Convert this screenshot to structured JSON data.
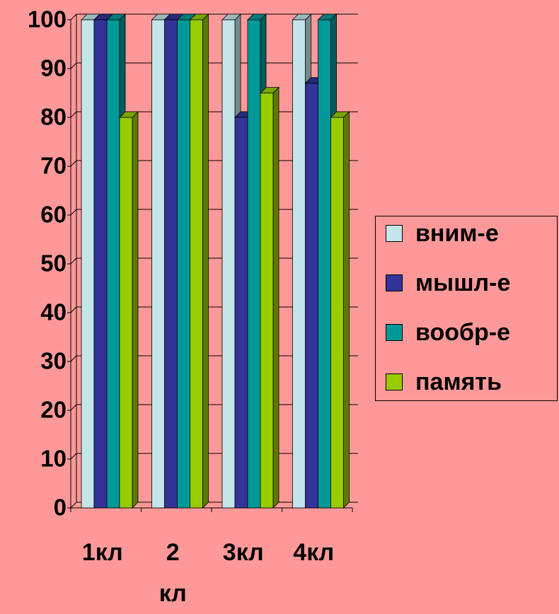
{
  "chart_data": {
    "type": "bar3d",
    "categories": [
      "1кл",
      "2 кл",
      "3кл",
      "4кл"
    ],
    "series": [
      {
        "name": "вним-е",
        "color": "#c4e6ea",
        "values": [
          100,
          100,
          100,
          100
        ]
      },
      {
        "name": "мышл-е",
        "color": "#333399",
        "values": [
          100,
          100,
          80,
          87
        ]
      },
      {
        "name": "вообр-е",
        "color": "#009999",
        "values": [
          100,
          100,
          100,
          100
        ]
      },
      {
        "name": "память",
        "color": "#99cc00",
        "values": [
          80,
          100,
          85,
          80
        ]
      }
    ],
    "ylim": [
      0,
      100
    ],
    "yticks": [
      0,
      10,
      20,
      30,
      40,
      50,
      60,
      70,
      80,
      90,
      100
    ],
    "grid": true,
    "legend": "right"
  }
}
